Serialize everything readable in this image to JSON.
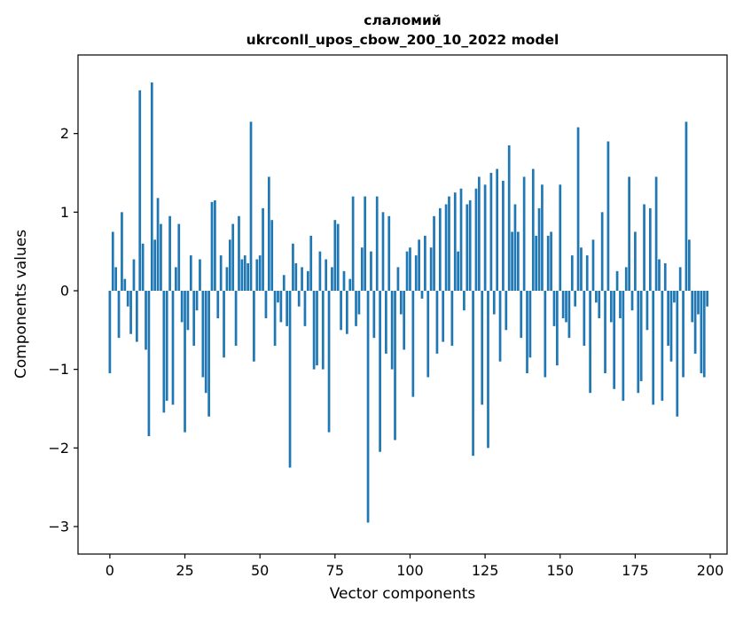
{
  "figure": {
    "title_line1": "слаломий",
    "title_line2": "ukrconll_upos_cbow_200_10_2022 model",
    "xlabel": "Vector components",
    "ylabel": "Components values"
  },
  "chart_data": {
    "type": "bar",
    "title": "слаломий\nukrconll_upos_cbow_200_10_2022 model",
    "xlabel": "Vector components",
    "ylabel": "Components values",
    "legend": "none",
    "grid": false,
    "bar_color": "#1f77b4",
    "spine_color": "#000000",
    "xticks": [
      0,
      25,
      50,
      75,
      100,
      125,
      150,
      175,
      200
    ],
    "yticks": [
      -3,
      -2,
      -1,
      0,
      1,
      2
    ],
    "xlim": [
      -10.6,
      205.6
    ],
    "ylim": [
      -3.35,
      3.0
    ],
    "x_start_index": 0,
    "values": [
      -1.05,
      0.75,
      0.3,
      -0.6,
      1.0,
      0.15,
      -0.2,
      -0.55,
      0.4,
      -0.65,
      2.55,
      0.6,
      -0.75,
      -1.85,
      2.65,
      0.65,
      1.18,
      0.85,
      -1.55,
      -1.4,
      0.95,
      -1.45,
      0.3,
      0.85,
      -0.4,
      -1.8,
      -0.5,
      0.45,
      -0.7,
      -0.25,
      0.4,
      -1.1,
      -1.3,
      -1.6,
      1.13,
      1.15,
      -0.35,
      0.45,
      -0.85,
      0.3,
      0.65,
      0.85,
      -0.7,
      0.95,
      0.4,
      0.45,
      0.35,
      2.15,
      -0.9,
      0.4,
      0.45,
      1.05,
      -0.35,
      1.45,
      0.9,
      -0.7,
      -0.15,
      -0.4,
      0.2,
      -0.45,
      -2.25,
      0.6,
      0.35,
      -0.2,
      0.3,
      -0.45,
      0.25,
      0.7,
      -1.0,
      -0.95,
      0.5,
      -1.0,
      0.4,
      -1.8,
      0.3,
      0.9,
      0.85,
      -0.5,
      0.25,
      -0.55,
      0.15,
      1.2,
      -0.45,
      -0.3,
      0.55,
      1.2,
      -2.95,
      0.5,
      -0.6,
      1.2,
      -2.05,
      1.0,
      -0.8,
      0.95,
      -1.0,
      -1.9,
      0.3,
      -0.3,
      -0.75,
      0.5,
      0.55,
      -1.35,
      0.45,
      0.65,
      -0.1,
      0.7,
      -1.1,
      0.55,
      0.95,
      -0.8,
      1.05,
      -0.65,
      1.1,
      1.2,
      -0.7,
      1.25,
      0.5,
      1.3,
      -0.25,
      1.1,
      1.15,
      -2.1,
      1.3,
      1.45,
      -1.45,
      1.35,
      -2.0,
      1.5,
      -0.3,
      1.55,
      -0.9,
      1.4,
      -0.5,
      1.85,
      0.75,
      1.1,
      0.75,
      -0.6,
      1.45,
      -1.05,
      -0.85,
      1.55,
      0.7,
      1.05,
      1.35,
      -1.1,
      0.7,
      0.75,
      -0.45,
      -0.95,
      1.35,
      -0.35,
      -0.4,
      -0.6,
      0.45,
      -0.2,
      2.08,
      0.55,
      -0.7,
      0.45,
      -1.3,
      0.65,
      -0.15,
      -0.35,
      1.0,
      -1.05,
      1.9,
      -0.4,
      -1.25,
      0.25,
      -0.35,
      -1.4,
      0.3,
      1.45,
      -0.25,
      0.75,
      -1.3,
      -1.15,
      1.1,
      -0.5,
      1.05,
      -1.45,
      1.45,
      0.4,
      -1.4,
      0.35,
      -0.7,
      -0.9,
      -0.15,
      -1.6,
      0.3,
      -1.1,
      2.15,
      0.65,
      -0.4,
      -0.8,
      -0.3,
      -1.05,
      -1.1,
      -0.2
    ]
  }
}
